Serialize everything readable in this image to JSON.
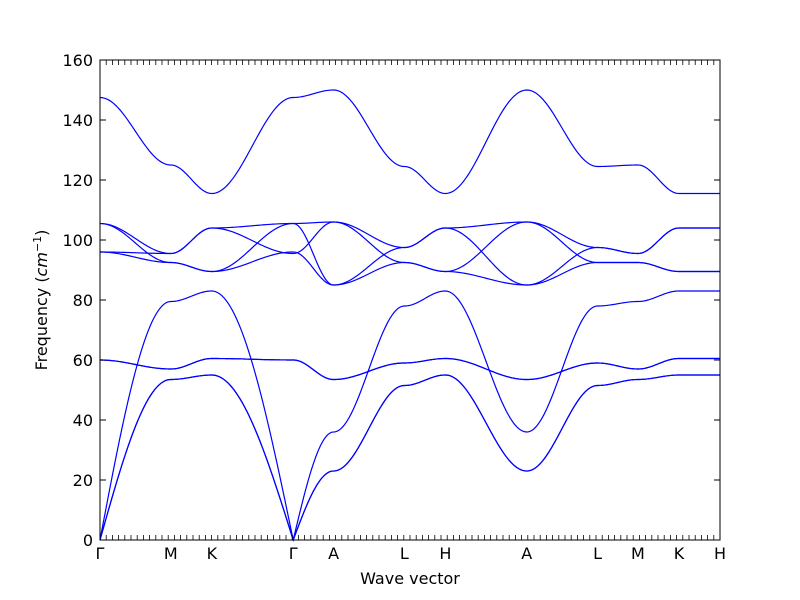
{
  "chart_data": {
    "type": "line",
    "xlabel": "Wave vector",
    "ylabel_main": "Frequency (",
    "ylabel_math": "cm",
    "ylabel_exp": "−1",
    "ylabel_close": ")",
    "ylim": [
      0,
      160
    ],
    "yticks": [
      0,
      20,
      40,
      60,
      80,
      100,
      120,
      140,
      160
    ],
    "grid": false,
    "legend": "none",
    "line_color": "#0000ff",
    "x_points": [
      "Γ",
      "M",
      "K",
      "Γ",
      "A",
      "L",
      "H",
      "A",
      "L",
      "M",
      "K",
      "H"
    ],
    "x_positions": [
      0,
      1,
      1.58,
      2.73,
      3.3,
      4.3,
      4.88,
      6.03,
      7.03,
      7.6,
      8.18,
      8.76
    ],
    "series": [
      {
        "x": [
          0,
          1,
          1.58,
          2.73,
          3.3,
          4.3,
          4.88,
          6.03,
          7.03,
          7.6,
          8.18,
          8.76
        ],
        "values": [
          0,
          53.5,
          55,
          0,
          23,
          51.5,
          55,
          23,
          51.5,
          53.5,
          55,
          55
        ]
      },
      {
        "x": [
          0,
          1,
          1.58,
          2.73,
          3.3,
          4.3,
          4.88,
          6.03,
          7.03,
          7.6,
          8.18,
          8.76
        ],
        "values": [
          0,
          53.5,
          55,
          0,
          23,
          51.5,
          55,
          23,
          51.5,
          53.5,
          55,
          55
        ]
      },
      {
        "x": [
          0,
          1,
          1.58,
          2.73,
          3.3,
          4.3,
          4.88,
          6.03,
          7.03,
          7.6,
          8.18,
          8.76
        ],
        "values": [
          0,
          79.5,
          83,
          0,
          36,
          78,
          83,
          36,
          78,
          79.5,
          83,
          83
        ]
      },
      {
        "x": [
          0,
          1,
          1.58,
          2.73,
          3.3,
          4.3,
          4.88,
          6.03,
          7.03,
          7.6,
          8.18,
          8.76
        ],
        "values": [
          60,
          57,
          60.5,
          60,
          53.5,
          59,
          60.5,
          53.5,
          59,
          57,
          60.5,
          60.5
        ]
      },
      {
        "x": [
          0,
          1,
          1.58,
          2.73,
          3.3,
          4.3,
          4.88,
          6.03,
          7.03,
          7.6,
          8.18,
          8.76
        ],
        "values": [
          60,
          57,
          60.5,
          60,
          53.5,
          59,
          60.5,
          53.5,
          59,
          57,
          60.5,
          60.5
        ]
      },
      {
        "x": [
          0,
          1,
          1.58,
          2.73,
          3.3,
          4.3,
          4.88,
          6.03,
          7.03,
          7.6,
          8.18,
          8.76
        ],
        "values": [
          96,
          92.5,
          89.5,
          96,
          85,
          92.5,
          89.5,
          85,
          92.5,
          92.5,
          89.5,
          89.5
        ]
      },
      {
        "x": [
          0,
          1,
          1.58,
          2.73,
          3.3,
          4.3,
          4.88,
          6.03,
          7.03,
          7.6,
          8.18,
          8.76
        ],
        "values": [
          105.5,
          92.5,
          89.5,
          105.5,
          106,
          92.5,
          89.5,
          106,
          92.5,
          92.5,
          89.5,
          89.5
        ]
      },
      {
        "x": [
          0,
          1,
          1.58,
          2.73,
          3.3,
          4.3,
          4.88,
          6.03,
          7.03,
          7.6,
          8.18,
          8.76
        ],
        "values": [
          105.5,
          95.5,
          104,
          95.5,
          106,
          97.5,
          104,
          106,
          97.5,
          95.5,
          104,
          104
        ]
      },
      {
        "x": [
          0,
          1,
          1.58,
          2.73,
          3.3,
          4.3,
          4.88,
          6.03,
          7.03,
          7.6,
          8.18,
          8.76
        ],
        "values": [
          96,
          95.5,
          104,
          105.5,
          85,
          97.5,
          104,
          85,
          97.5,
          95.5,
          104,
          104
        ]
      },
      {
        "x": [
          0,
          1,
          1.58,
          2.73,
          3.3,
          4.3,
          4.88,
          6.03,
          7.03,
          7.6,
          8.18,
          8.76
        ],
        "values": [
          147.5,
          125,
          115.5,
          147.5,
          150,
          124.5,
          115.5,
          150,
          124.5,
          125,
          115.5,
          115.5
        ]
      }
    ]
  }
}
